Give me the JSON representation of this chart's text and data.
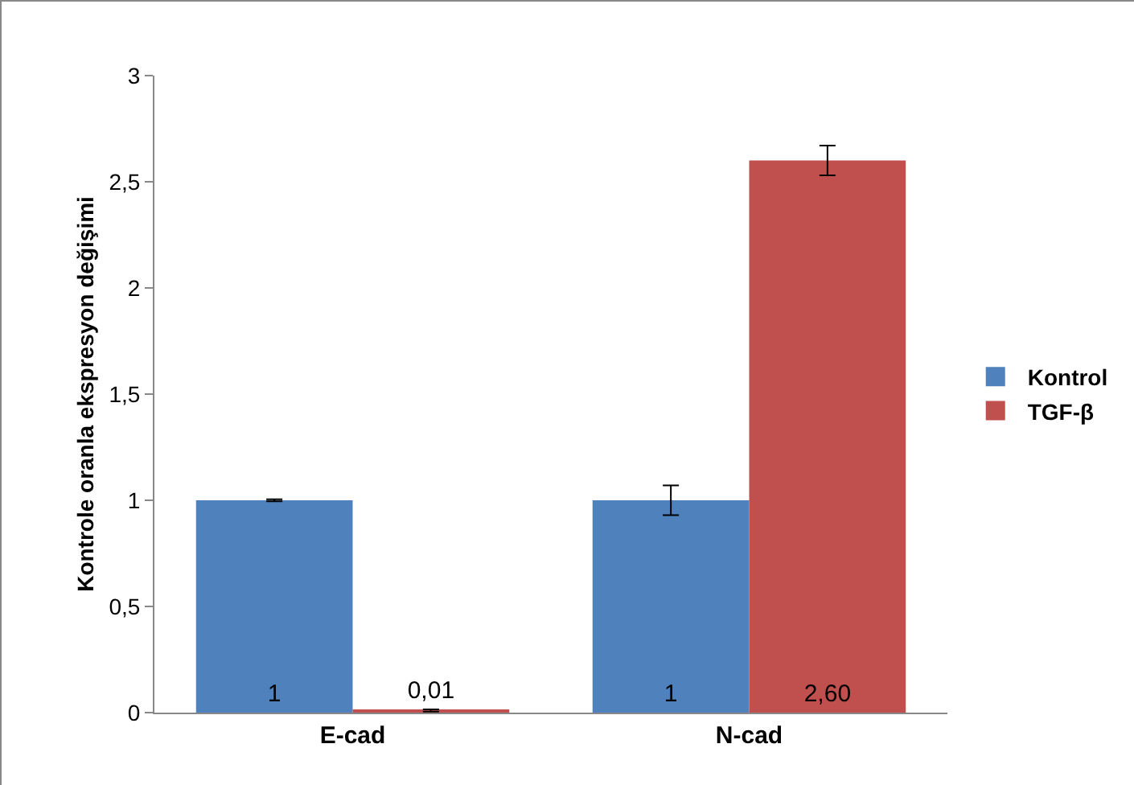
{
  "chart_data": {
    "type": "bar",
    "ylabel": "Kontrole oranla ekspresyon değişimi",
    "categories": [
      "E-cad",
      "N-cad"
    ],
    "series": [
      {
        "name": "Kontrol",
        "color": "#4f81bd",
        "values": [
          1,
          1
        ],
        "errors": [
          0.005,
          0.07
        ],
        "value_labels": [
          "1",
          "1"
        ]
      },
      {
        "name": "TGF-β",
        "color": "#c0504d",
        "values": [
          0.01,
          2.6
        ],
        "errors": [
          0.005,
          0.07
        ],
        "value_labels": [
          "0,01",
          "2,60"
        ]
      }
    ],
    "ylim": [
      0,
      3
    ],
    "yticks": [
      0,
      {
        "value": 0.5,
        "label": "0,5"
      },
      1,
      {
        "value": 1.5,
        "label": "1,5"
      },
      2,
      {
        "value": 2.5,
        "label": "2,5"
      },
      3
    ],
    "grid": false,
    "legend": "right"
  }
}
